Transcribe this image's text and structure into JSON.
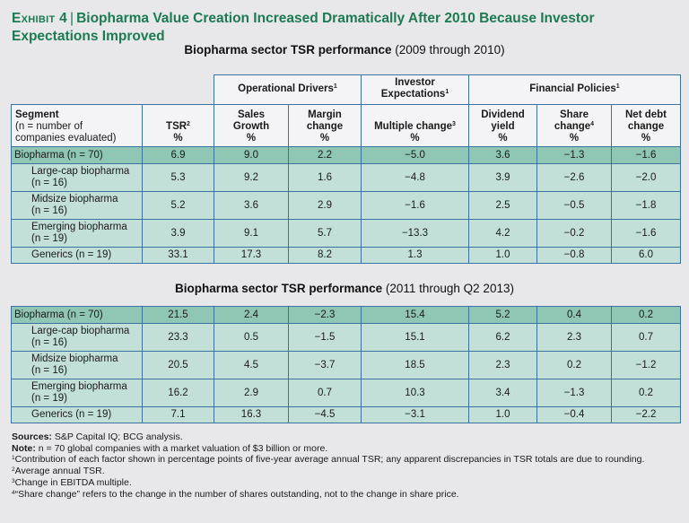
{
  "title": {
    "exhibit": "Exhibit 4",
    "separator": "|",
    "text": "Biopharma Value Creation Increased Dramatically After 2010 Because Investor Expectations Improved"
  },
  "colors": {
    "title_green": "#1d7a52",
    "header_bg": "#f4f4f6",
    "total_row_bg": "#8fc6b4",
    "row_bg": "#c3e0d8",
    "border_blue": "#3b72a0",
    "page_bg": "#e8e8ea"
  },
  "header": {
    "groups": {
      "operational": "Operational Drivers",
      "operational_sup": "1",
      "investor_line1": "Investor",
      "investor_line2": "Expectations",
      "investor_sup": "1",
      "financial": "Financial Policies",
      "financial_sup": "1"
    },
    "columns": {
      "segment_title": "Segment",
      "segment_line2": "(n = number of",
      "segment_line3": "companies evaluated)",
      "tsr": "TSR",
      "tsr_sup": "2",
      "sales_1": "Sales",
      "sales_2": "Growth",
      "margin_1": "Margin",
      "margin_2": "change",
      "multiple": "Multiple change",
      "multiple_sup": "3",
      "dividend_1": "Dividend",
      "dividend_2": "yield",
      "share_1": "Share",
      "share_2": "change",
      "share_sup": "4",
      "netdebt_1": "Net debt",
      "netdebt_2": "change",
      "unit": "%"
    }
  },
  "tables": [
    {
      "subtitle": "Biopharma sector TSR performance",
      "period": "(2009 through 2010)",
      "rows": [
        {
          "seg1": "Biopharma (n = 70)",
          "seg2": "",
          "tsr": "6.9",
          "sales": "9.0",
          "margin": "2.2",
          "multiple": "−5.0",
          "dividend": "3.6",
          "share": "−1.3",
          "netdebt": "−1.6"
        },
        {
          "seg1": "Large-cap biopharma",
          "seg2": "(n = 16)",
          "tsr": "5.3",
          "sales": "9.2",
          "margin": "1.6",
          "multiple": "−4.8",
          "dividend": "3.9",
          "share": "−2.6",
          "netdebt": "−2.0"
        },
        {
          "seg1": "Midsize biopharma",
          "seg2": "(n = 16)",
          "tsr": "5.2",
          "sales": "3.6",
          "margin": "2.9",
          "multiple": "−1.6",
          "dividend": "2.5",
          "share": "−0.5",
          "netdebt": "−1.8"
        },
        {
          "seg1": "Emerging biopharma",
          "seg2": "(n = 19)",
          "tsr": "3.9",
          "sales": "9.1",
          "margin": "5.7",
          "multiple": "−13.3",
          "dividend": "4.2",
          "share": "−0.2",
          "netdebt": "−1.6"
        },
        {
          "seg1": "Generics (n = 19)",
          "seg2": "",
          "tsr": "33.1",
          "sales": "17.3",
          "margin": "8.2",
          "multiple": "1.3",
          "dividend": "1.0",
          "share": "−0.8",
          "netdebt": "6.0"
        }
      ]
    },
    {
      "subtitle": "Biopharma sector TSR performance",
      "period": "(2011 through Q2 2013)",
      "rows": [
        {
          "seg1": "Biopharma (n = 70)",
          "seg2": "",
          "tsr": "21.5",
          "sales": "2.4",
          "margin": "−2.3",
          "multiple": "15.4",
          "dividend": "5.2",
          "share": "0.4",
          "netdebt": "0.2"
        },
        {
          "seg1": "Large-cap biopharma",
          "seg2": "(n = 16)",
          "tsr": "23.3",
          "sales": "0.5",
          "margin": "−1.5",
          "multiple": "15.1",
          "dividend": "6.2",
          "share": "2.3",
          "netdebt": "0.7"
        },
        {
          "seg1": "Midsize biopharma",
          "seg2": "(n = 16)",
          "tsr": "20.5",
          "sales": "4.5",
          "margin": "−3.7",
          "multiple": "18.5",
          "dividend": "2.3",
          "share": "0.2",
          "netdebt": "−1.2"
        },
        {
          "seg1": "Emerging biopharma",
          "seg2": "(n = 19)",
          "tsr": "16.2",
          "sales": "2.9",
          "margin": "0.7",
          "multiple": "10.3",
          "dividend": "3.4",
          "share": "−1.3",
          "netdebt": "0.2"
        },
        {
          "seg1": "Generics (n = 19)",
          "seg2": "",
          "tsr": "7.1",
          "sales": "16.3",
          "margin": "−4.5",
          "multiple": "−3.1",
          "dividend": "1.0",
          "share": "−0.4",
          "netdebt": "−2.2"
        }
      ]
    }
  ],
  "notes": {
    "sources_label": "Sources:",
    "sources_text": "S&P Capital IQ; BCG analysis.",
    "note_label": "Note:",
    "note_text": "n = 70 global companies with a market valuation of $3 billion or more.",
    "footnotes": [
      {
        "num": "1",
        "text": "Contribution of each factor shown in percentage points of five-year average annual TSR; any apparent discrepancies in TSR totals are due to rounding."
      },
      {
        "num": "2",
        "text": "Average annual TSR."
      },
      {
        "num": "3",
        "text": "Change in EBITDA multiple."
      },
      {
        "num": "4",
        "text": "“Share change” refers to the change in the number of shares outstanding, not to the change in share price."
      }
    ]
  }
}
